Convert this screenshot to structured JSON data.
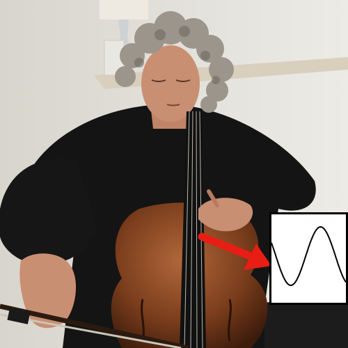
{
  "scene": {
    "subject": "cellist-playing",
    "instrument": "cello",
    "colors": {
      "wall": "#e4e2dc",
      "sweater": "#141414",
      "cello_body": "#7a3d1c",
      "hair": "#9b958b",
      "skin": "#c98f73",
      "arrow": "#e81e14",
      "floor": "#1c1c1c"
    }
  },
  "inset": {
    "content": "sine-waveform",
    "cycles_visible": 1.25,
    "stroke_color": "#000000",
    "background": "#ffffff"
  },
  "annotation": {
    "type": "arrow",
    "color": "#e81e14",
    "points_to": "waveform-inset"
  }
}
